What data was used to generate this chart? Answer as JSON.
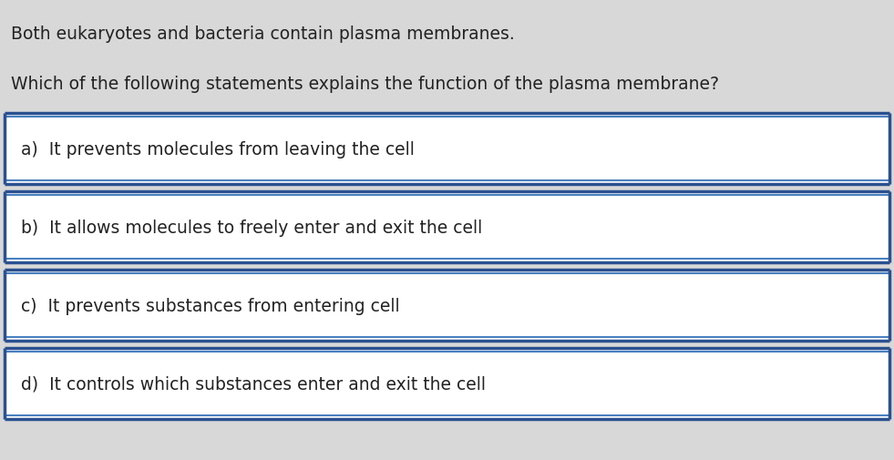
{
  "background_color": "#d8d8d8",
  "box_background": "#ffffff",
  "box_border_outer": "#2a5090",
  "box_border_inner": "#4a80c0",
  "text_color": "#222222",
  "intro_text": "Both eukaryotes and bacteria contain plasma membranes.",
  "question_text": "Which of the following statements explains the function of the plasma membrane?",
  "options": [
    "a)  It prevents molecules from leaving the cell",
    "b)  It allows molecules to freely enter and exit the cell",
    "c)  It prevents substances from entering cell",
    "d)  It controls which substances enter and exit the cell"
  ],
  "intro_fontsize": 13.5,
  "question_fontsize": 13.5,
  "option_fontsize": 13.5,
  "fig_width": 9.81,
  "fig_height": 5.06,
  "dpi": 100
}
